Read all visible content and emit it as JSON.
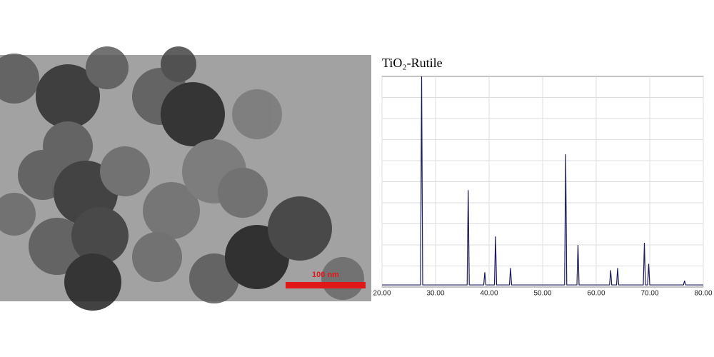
{
  "chart_data": {
    "type": "line",
    "title": "TiO₂-Rutile",
    "x": [
      20,
      27.2,
      27.4,
      27.6,
      35.9,
      36.1,
      36.3,
      39.0,
      39.2,
      39.4,
      41.0,
      41.2,
      41.4,
      43.8,
      44.0,
      44.2,
      54.1,
      54.3,
      54.5,
      56.4,
      56.6,
      56.8,
      62.5,
      62.7,
      62.9,
      63.8,
      64.0,
      64.2,
      68.8,
      69.0,
      69.2,
      69.6,
      69.8,
      70.0,
      76.3,
      76.5,
      76.7,
      80
    ],
    "values": [
      1,
      1,
      100,
      1,
      1,
      46,
      1,
      1,
      7,
      1,
      1,
      24,
      1,
      1,
      9,
      1,
      1,
      63,
      1,
      1,
      20,
      1,
      1,
      8,
      1,
      1,
      9,
      1,
      1,
      21,
      1,
      1,
      11,
      1,
      1,
      3,
      1,
      1
    ],
    "color": "#1c1c5c",
    "xlim": [
      20,
      80
    ],
    "xticks": [
      {
        "value": 20,
        "label": "20.00"
      },
      {
        "value": 30,
        "label": "30.00"
      },
      {
        "value": 40,
        "label": "40.00"
      },
      {
        "value": 50,
        "label": "50.00"
      },
      {
        "value": 60,
        "label": "60.00"
      },
      {
        "value": 70,
        "label": "70.00"
      },
      {
        "value": 80,
        "label": "80.00"
      }
    ],
    "ylim": [
      0,
      100
    ],
    "grid": true
  },
  "micrograph": {
    "scale_label": "100 nm"
  }
}
